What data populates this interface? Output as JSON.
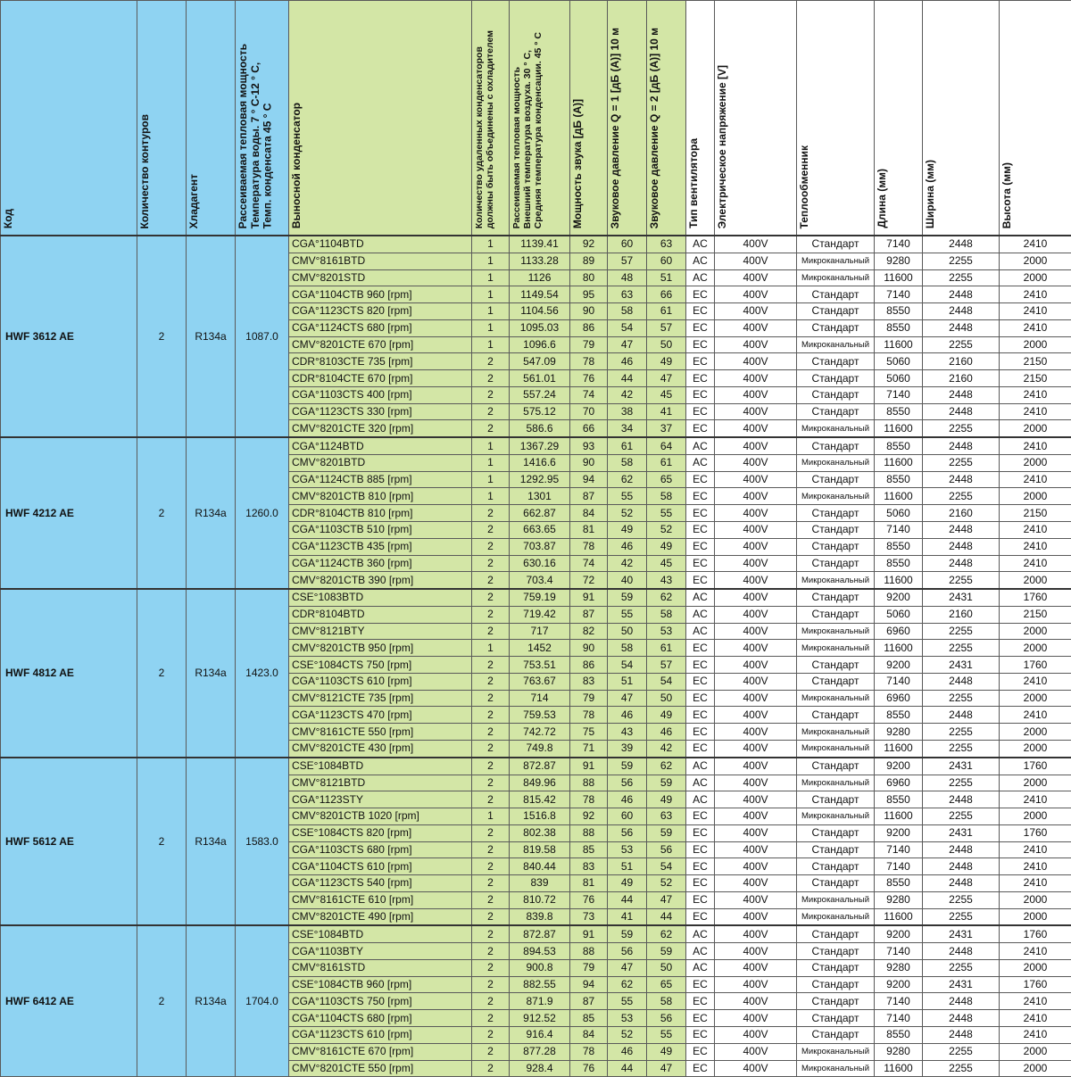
{
  "headers": {
    "code": "Код",
    "circuits": "Количество контуров",
    "refrigerant": "Хладагент",
    "heat": "Рассеиваемая тепловая мощность\nТемпература воды. 7 ° C-12 ° C,\nТемп. конденсата 45 ° C",
    "condenser": "Выносной конденсатор",
    "cond_count": "Количество удаленных конденсаторов\nдолжны быть объединены с охладителем",
    "cond_heat": "Рассеиваемая тепловая мощность\nВнешний температура воздуха. 30 ° C,\nСредняя температура конденсации. 45 ° C",
    "sound_power": "Мощность звука [дБ (A)]",
    "spl_q1": "Звуковое давление Q = 1 [дБ (A)] 10 м",
    "spl_q2": "Звуковое давление Q = 2 [дБ (A)] 10 м",
    "fan_type": "Тип вентилятора",
    "voltage": "Электрическое напряжение [V]",
    "exchanger": "Теплообменник",
    "length": "Длина (мм)",
    "width": "Ширина (мм)",
    "height": "Высота (мм)"
  },
  "groups": [
    {
      "code": "HWF 3612 AE",
      "circuits": "2",
      "refrigerant": "R134a",
      "heat": "1087.0",
      "rows": [
        [
          "CGA°1104BTD",
          "1",
          "1139.41",
          "92",
          "60",
          "63",
          "AC",
          "400V",
          "Стандарт",
          "7140",
          "2448",
          "2410"
        ],
        [
          "CMV°8161BTD",
          "1",
          "1133.28",
          "89",
          "57",
          "60",
          "AC",
          "400V",
          "Микроканальный",
          "9280",
          "2255",
          "2000"
        ],
        [
          "CMV°8201STD",
          "1",
          "1126",
          "80",
          "48",
          "51",
          "AC",
          "400V",
          "Микроканальный",
          "11600",
          "2255",
          "2000"
        ],
        [
          "CGA°1104CTB 960 [rpm]",
          "1",
          "1149.54",
          "95",
          "63",
          "66",
          "EC",
          "400V",
          "Стандарт",
          "7140",
          "2448",
          "2410"
        ],
        [
          "CGA°1123CTS 820 [rpm]",
          "1",
          "1104.56",
          "90",
          "58",
          "61",
          "EC",
          "400V",
          "Стандарт",
          "8550",
          "2448",
          "2410"
        ],
        [
          "CGA°1124CTS 680 [rpm]",
          "1",
          "1095.03",
          "86",
          "54",
          "57",
          "EC",
          "400V",
          "Стандарт",
          "8550",
          "2448",
          "2410"
        ],
        [
          "CMV°8201CTE 670 [rpm]",
          "1",
          "1096.6",
          "79",
          "47",
          "50",
          "EC",
          "400V",
          "Микроканальный",
          "11600",
          "2255",
          "2000"
        ],
        [
          "CDR°8103CTE 735 [rpm]",
          "2",
          "547.09",
          "78",
          "46",
          "49",
          "EC",
          "400V",
          "Стандарт",
          "5060",
          "2160",
          "2150"
        ],
        [
          "CDR°8104CTE 670 [rpm]",
          "2",
          "561.01",
          "76",
          "44",
          "47",
          "EC",
          "400V",
          "Стандарт",
          "5060",
          "2160",
          "2150"
        ],
        [
          "CGA°1103CTS 400 [rpm]",
          "2",
          "557.24",
          "74",
          "42",
          "45",
          "EC",
          "400V",
          "Стандарт",
          "7140",
          "2448",
          "2410"
        ],
        [
          "CGA°1123CTS 330 [rpm]",
          "2",
          "575.12",
          "70",
          "38",
          "41",
          "EC",
          "400V",
          "Стандарт",
          "8550",
          "2448",
          "2410"
        ],
        [
          "CMV°8201CTE 320 [rpm]",
          "2",
          "586.6",
          "66",
          "34",
          "37",
          "EC",
          "400V",
          "Микроканальный",
          "11600",
          "2255",
          "2000"
        ]
      ]
    },
    {
      "code": "HWF 4212 AE",
      "circuits": "2",
      "refrigerant": "R134a",
      "heat": "1260.0",
      "rows": [
        [
          "CGA°1124BTD",
          "1",
          "1367.29",
          "93",
          "61",
          "64",
          "AC",
          "400V",
          "Стандарт",
          "8550",
          "2448",
          "2410"
        ],
        [
          "CMV°8201BTD",
          "1",
          "1416.6",
          "90",
          "58",
          "61",
          "AC",
          "400V",
          "Микроканальный",
          "11600",
          "2255",
          "2000"
        ],
        [
          "CGA°1124CTB 885 [rpm]",
          "1",
          "1292.95",
          "94",
          "62",
          "65",
          "EC",
          "400V",
          "Стандарт",
          "8550",
          "2448",
          "2410"
        ],
        [
          "CMV°8201CTB 810 [rpm]",
          "1",
          "1301",
          "87",
          "55",
          "58",
          "EC",
          "400V",
          "Микроканальный",
          "11600",
          "2255",
          "2000"
        ],
        [
          "CDR°8104CTB 810 [rpm]",
          "2",
          "662.87",
          "84",
          "52",
          "55",
          "EC",
          "400V",
          "Стандарт",
          "5060",
          "2160",
          "2150"
        ],
        [
          "CGA°1103CTB 510 [rpm]",
          "2",
          "663.65",
          "81",
          "49",
          "52",
          "EC",
          "400V",
          "Стандарт",
          "7140",
          "2448",
          "2410"
        ],
        [
          "CGA°1123CTB 435 [rpm]",
          "2",
          "703.87",
          "78",
          "46",
          "49",
          "EC",
          "400V",
          "Стандарт",
          "8550",
          "2448",
          "2410"
        ],
        [
          "CGA°1124CTB 360 [rpm]",
          "2",
          "630.16",
          "74",
          "42",
          "45",
          "EC",
          "400V",
          "Стандарт",
          "8550",
          "2448",
          "2410"
        ],
        [
          "CMV°8201CTB 390 [rpm]",
          "2",
          "703.4",
          "72",
          "40",
          "43",
          "EC",
          "400V",
          "Микроканальный",
          "11600",
          "2255",
          "2000"
        ]
      ]
    },
    {
      "code": "HWF 4812 AE",
      "circuits": "2",
      "refrigerant": "R134a",
      "heat": "1423.0",
      "rows": [
        [
          "CSE°1083BTD",
          "2",
          "759.19",
          "91",
          "59",
          "62",
          "AC",
          "400V",
          "Стандарт",
          "9200",
          "2431",
          "1760"
        ],
        [
          "CDR°8104BTD",
          "2",
          "719.42",
          "87",
          "55",
          "58",
          "AC",
          "400V",
          "Стандарт",
          "5060",
          "2160",
          "2150"
        ],
        [
          "CMV°8121BTY",
          "2",
          "717",
          "82",
          "50",
          "53",
          "AC",
          "400V",
          "Микроканальный",
          "6960",
          "2255",
          "2000"
        ],
        [
          "CMV°8201CTB 950 [rpm]",
          "1",
          "1452",
          "90",
          "58",
          "61",
          "EC",
          "400V",
          "Микроканальный",
          "11600",
          "2255",
          "2000"
        ],
        [
          "CSE°1084CTS 750 [rpm]",
          "2",
          "753.51",
          "86",
          "54",
          "57",
          "EC",
          "400V",
          "Стандарт",
          "9200",
          "2431",
          "1760"
        ],
        [
          "CGA°1103CTS 610 [rpm]",
          "2",
          "763.67",
          "83",
          "51",
          "54",
          "EC",
          "400V",
          "Стандарт",
          "7140",
          "2448",
          "2410"
        ],
        [
          "CMV°8121CTE 735 [rpm]",
          "2",
          "714",
          "79",
          "47",
          "50",
          "EC",
          "400V",
          "Микроканальный",
          "6960",
          "2255",
          "2000"
        ],
        [
          "CGA°1123CTS 470 [rpm]",
          "2",
          "759.53",
          "78",
          "46",
          "49",
          "EC",
          "400V",
          "Стандарт",
          "8550",
          "2448",
          "2410"
        ],
        [
          "CMV°8161CTE 550 [rpm]",
          "2",
          "742.72",
          "75",
          "43",
          "46",
          "EC",
          "400V",
          "Микроканальный",
          "9280",
          "2255",
          "2000"
        ],
        [
          "CMV°8201CTE 430 [rpm]",
          "2",
          "749.8",
          "71",
          "39",
          "42",
          "EC",
          "400V",
          "Микроканальный",
          "11600",
          "2255",
          "2000"
        ]
      ]
    },
    {
      "code": "HWF 5612 AE",
      "circuits": "2",
      "refrigerant": "R134a",
      "heat": "1583.0",
      "rows": [
        [
          "CSE°1084BTD",
          "2",
          "872.87",
          "91",
          "59",
          "62",
          "AC",
          "400V",
          "Стандарт",
          "9200",
          "2431",
          "1760"
        ],
        [
          "CMV°8121BTD",
          "2",
          "849.96",
          "88",
          "56",
          "59",
          "AC",
          "400V",
          "Микроканальный",
          "6960",
          "2255",
          "2000"
        ],
        [
          "CGA°1123STY",
          "2",
          "815.42",
          "78",
          "46",
          "49",
          "AC",
          "400V",
          "Стандарт",
          "8550",
          "2448",
          "2410"
        ],
        [
          "CMV°8201CTB 1020 [rpm]",
          "1",
          "1516.8",
          "92",
          "60",
          "63",
          "EC",
          "400V",
          "Микроканальный",
          "11600",
          "2255",
          "2000"
        ],
        [
          "CSE°1084CTS 820 [rpm]",
          "2",
          "802.38",
          "88",
          "56",
          "59",
          "EC",
          "400V",
          "Стандарт",
          "9200",
          "2431",
          "1760"
        ],
        [
          "CGA°1103CTS 680 [rpm]",
          "2",
          "819.58",
          "85",
          "53",
          "56",
          "EC",
          "400V",
          "Стандарт",
          "7140",
          "2448",
          "2410"
        ],
        [
          "CGA°1104CTS 610 [rpm]",
          "2",
          "840.44",
          "83",
          "51",
          "54",
          "EC",
          "400V",
          "Стандарт",
          "7140",
          "2448",
          "2410"
        ],
        [
          "CGA°1123CTS 540 [rpm]",
          "2",
          "839",
          "81",
          "49",
          "52",
          "EC",
          "400V",
          "Стандарт",
          "8550",
          "2448",
          "2410"
        ],
        [
          "CMV°8161CTE 610 [rpm]",
          "2",
          "810.72",
          "76",
          "44",
          "47",
          "EC",
          "400V",
          "Микроканальный",
          "9280",
          "2255",
          "2000"
        ],
        [
          "CMV°8201CTE 490 [rpm]",
          "2",
          "839.8",
          "73",
          "41",
          "44",
          "EC",
          "400V",
          "Микроканальный",
          "11600",
          "2255",
          "2000"
        ]
      ]
    },
    {
      "code": "HWF 6412 AE",
      "circuits": "2",
      "refrigerant": "R134a",
      "heat": "1704.0",
      "rows": [
        [
          "CSE°1084BTD",
          "2",
          "872.87",
          "91",
          "59",
          "62",
          "AC",
          "400V",
          "Стандарт",
          "9200",
          "2431",
          "1760"
        ],
        [
          "CGA°1103BTY",
          "2",
          "894.53",
          "88",
          "56",
          "59",
          "AC",
          "400V",
          "Стандарт",
          "7140",
          "2448",
          "2410"
        ],
        [
          "CMV°8161STD",
          "2",
          "900.8",
          "79",
          "47",
          "50",
          "AC",
          "400V",
          "Стандарт",
          "9280",
          "2255",
          "2000"
        ],
        [
          "CSE°1084CTB 960 [rpm]",
          "2",
          "882.55",
          "94",
          "62",
          "65",
          "EC",
          "400V",
          "Стандарт",
          "9200",
          "2431",
          "1760"
        ],
        [
          "CGA°1103CTS 750 [rpm]",
          "2",
          "871.9",
          "87",
          "55",
          "58",
          "EC",
          "400V",
          "Стандарт",
          "7140",
          "2448",
          "2410"
        ],
        [
          "CGA°1104CTS 680 [rpm]",
          "2",
          "912.52",
          "85",
          "53",
          "56",
          "EC",
          "400V",
          "Стандарт",
          "7140",
          "2448",
          "2410"
        ],
        [
          "CGA°1123CTS 610 [rpm]",
          "2",
          "916.4",
          "84",
          "52",
          "55",
          "EC",
          "400V",
          "Стандарт",
          "8550",
          "2448",
          "2410"
        ],
        [
          "CMV°8161CTE 670 [rpm]",
          "2",
          "877.28",
          "78",
          "46",
          "49",
          "EC",
          "400V",
          "Микроканальный",
          "9280",
          "2255",
          "2000"
        ],
        [
          "CMV°8201CTE 550 [rpm]",
          "2",
          "928.4",
          "76",
          "44",
          "47",
          "EC",
          "400V",
          "Микроканальный",
          "11600",
          "2255",
          "2000"
        ]
      ]
    }
  ]
}
